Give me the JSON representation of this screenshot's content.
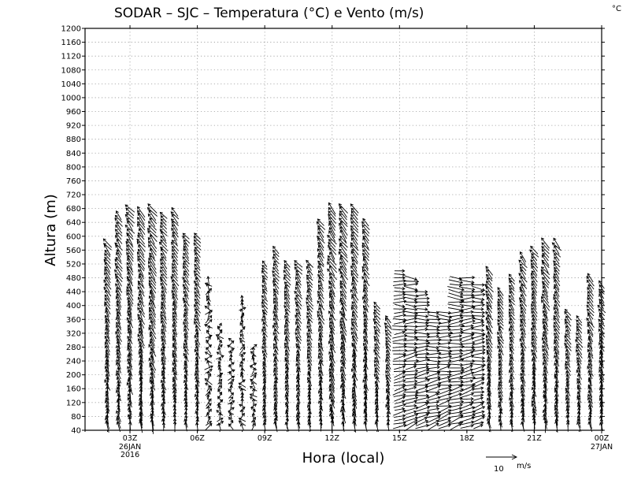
{
  "chart_data": {
    "type": "vector-profile",
    "title": "SODAR – SJC – Temperatura (°C) e Vento (m/s)",
    "corner_unit": "°C",
    "xlabel": "Hora (local)",
    "ylabel": "Altura (m)",
    "ylim": [
      40,
      1200
    ],
    "y_ticks": [
      40,
      80,
      120,
      160,
      200,
      240,
      280,
      320,
      360,
      400,
      440,
      480,
      520,
      560,
      600,
      640,
      680,
      720,
      760,
      800,
      840,
      880,
      920,
      960,
      1000,
      1040,
      1080,
      1120,
      1160,
      1200
    ],
    "xlim": [
      1.0,
      24.0
    ],
    "x_ticks": [
      {
        "hour": 3,
        "label": "03Z",
        "sub": [
          "26JAN",
          "2016"
        ]
      },
      {
        "hour": 6,
        "label": "06Z",
        "sub": []
      },
      {
        "hour": 9,
        "label": "09Z",
        "sub": []
      },
      {
        "hour": 12,
        "label": "12Z",
        "sub": []
      },
      {
        "hour": 15,
        "label": "15Z",
        "sub": []
      },
      {
        "hour": 18,
        "label": "18Z",
        "sub": []
      },
      {
        "hour": 21,
        "label": "21Z",
        "sub": []
      },
      {
        "hour": 24,
        "label": "00Z",
        "sub": [
          "27JAN"
        ]
      }
    ],
    "reference_vector": {
      "speed": 10,
      "label": "10",
      "unit": "m/s"
    },
    "grid": true,
    "profiles": [
      {
        "hour": 2.0,
        "top": 580,
        "pattern": "sw-north",
        "strength": 1.0
      },
      {
        "hour": 2.5,
        "top": 660,
        "pattern": "sw-north",
        "strength": 1.0
      },
      {
        "hour": 3.0,
        "top": 680,
        "pattern": "sw-north",
        "strength": 1.1
      },
      {
        "hour": 3.5,
        "top": 670,
        "pattern": "sw-north",
        "strength": 1.1
      },
      {
        "hour": 4.0,
        "top": 680,
        "pattern": "sw-north",
        "strength": 1.2
      },
      {
        "hour": 4.5,
        "top": 660,
        "pattern": "sw-north",
        "strength": 1.0
      },
      {
        "hour": 5.0,
        "top": 670,
        "pattern": "sw-north",
        "strength": 1.0
      },
      {
        "hour": 5.5,
        "top": 600,
        "pattern": "sw-north",
        "strength": 0.9
      },
      {
        "hour": 6.0,
        "top": 600,
        "pattern": "sw-north",
        "strength": 0.9
      },
      {
        "hour": 6.5,
        "top": 470,
        "pattern": "weak",
        "strength": 0.8
      },
      {
        "hour": 7.0,
        "top": 340,
        "pattern": "weak",
        "strength": 0.7
      },
      {
        "hour": 7.5,
        "top": 300,
        "pattern": "weak",
        "strength": 0.7
      },
      {
        "hour": 8.0,
        "top": 420,
        "pattern": "weak",
        "strength": 0.7
      },
      {
        "hour": 8.5,
        "top": 280,
        "pattern": "weak",
        "strength": 0.7
      },
      {
        "hour": 9.0,
        "top": 520,
        "pattern": "sw-north",
        "strength": 0.8
      },
      {
        "hour": 9.5,
        "top": 560,
        "pattern": "sw-north",
        "strength": 0.9
      },
      {
        "hour": 10.0,
        "top": 520,
        "pattern": "sw-north",
        "strength": 0.9
      },
      {
        "hour": 10.5,
        "top": 520,
        "pattern": "sw-north",
        "strength": 0.9
      },
      {
        "hour": 11.0,
        "top": 520,
        "pattern": "sw-north",
        "strength": 0.9
      },
      {
        "hour": 11.5,
        "top": 640,
        "pattern": "sw-north",
        "strength": 1.0
      },
      {
        "hour": 12.0,
        "top": 680,
        "pattern": "sw-north",
        "strength": 1.2
      },
      {
        "hour": 12.5,
        "top": 680,
        "pattern": "sw-north",
        "strength": 1.2
      },
      {
        "hour": 13.0,
        "top": 680,
        "pattern": "sw-north",
        "strength": 1.1
      },
      {
        "hour": 13.5,
        "top": 640,
        "pattern": "sw-north",
        "strength": 1.0
      },
      {
        "hour": 14.0,
        "top": 400,
        "pattern": "sw-north",
        "strength": 0.9
      },
      {
        "hour": 14.5,
        "top": 360,
        "pattern": "sw-north",
        "strength": 0.9
      },
      {
        "hour": 15.0,
        "top": 500,
        "pattern": "west",
        "strength": 1.2
      },
      {
        "hour": 15.5,
        "top": 480,
        "pattern": "west",
        "strength": 1.3
      },
      {
        "hour": 16.0,
        "top": 440,
        "pattern": "west",
        "strength": 1.3
      },
      {
        "hour": 16.5,
        "top": 380,
        "pattern": "west",
        "strength": 1.3
      },
      {
        "hour": 17.0,
        "top": 380,
        "pattern": "west",
        "strength": 1.3
      },
      {
        "hour": 17.5,
        "top": 480,
        "pattern": "west",
        "strength": 1.4
      },
      {
        "hour": 18.0,
        "top": 480,
        "pattern": "west",
        "strength": 1.4
      },
      {
        "hour": 18.5,
        "top": 460,
        "pattern": "west",
        "strength": 1.2
      },
      {
        "hour": 19.0,
        "top": 500,
        "pattern": "sw-north",
        "strength": 1.0
      },
      {
        "hour": 19.5,
        "top": 440,
        "pattern": "sw-north",
        "strength": 0.9
      },
      {
        "hour": 20.0,
        "top": 480,
        "pattern": "sw-north",
        "strength": 0.9
      },
      {
        "hour": 20.5,
        "top": 540,
        "pattern": "sw-north",
        "strength": 1.0
      },
      {
        "hour": 21.0,
        "top": 560,
        "pattern": "sw-north",
        "strength": 1.0
      },
      {
        "hour": 21.5,
        "top": 580,
        "pattern": "sw-north",
        "strength": 1.1
      },
      {
        "hour": 22.0,
        "top": 580,
        "pattern": "sw-north",
        "strength": 1.0
      },
      {
        "hour": 22.5,
        "top": 380,
        "pattern": "sw-north",
        "strength": 0.9
      },
      {
        "hour": 23.0,
        "top": 360,
        "pattern": "sw-north",
        "strength": 0.9
      },
      {
        "hour": 23.5,
        "top": 480,
        "pattern": "sw-north",
        "strength": 1.0
      },
      {
        "hour": 24.0,
        "top": 460,
        "pattern": "sw-north",
        "strength": 0.9
      }
    ]
  }
}
